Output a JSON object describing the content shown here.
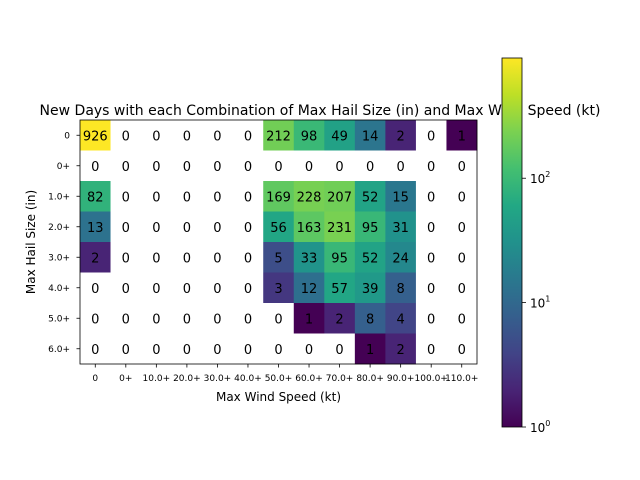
{
  "chart_data": {
    "type": "heatmap",
    "title": "New Days with each Combination of Max Hail Size (in) and Max Wind Speed (kt)",
    "xlabel": "Max Wind Speed (kt)",
    "ylabel": "Max Hail Size (in)",
    "x_categories": [
      "0",
      "0+",
      "10.0+",
      "20.0+",
      "30.0+",
      "40.0+",
      "50.0+",
      "60.0+",
      "70.0+",
      "80.0+",
      "90.0+",
      "100.0+",
      "110.0+"
    ],
    "y_categories": [
      "0",
      "0+",
      "1.0+",
      "2.0+",
      "3.0+",
      "4.0+",
      "5.0+",
      "6.0+"
    ],
    "values": [
      [
        926,
        0,
        0,
        0,
        0,
        0,
        212,
        98,
        49,
        14,
        2,
        0,
        1
      ],
      [
        0,
        0,
        0,
        0,
        0,
        0,
        0,
        0,
        0,
        0,
        0,
        0,
        0
      ],
      [
        82,
        0,
        0,
        0,
        0,
        0,
        169,
        228,
        207,
        52,
        15,
        0,
        0
      ],
      [
        13,
        0,
        0,
        0,
        0,
        0,
        56,
        163,
        231,
        95,
        31,
        0,
        0
      ],
      [
        2,
        0,
        0,
        0,
        0,
        0,
        5,
        33,
        95,
        52,
        24,
        0,
        0
      ],
      [
        0,
        0,
        0,
        0,
        0,
        0,
        3,
        12,
        57,
        39,
        8,
        0,
        0
      ],
      [
        0,
        0,
        0,
        0,
        0,
        0,
        0,
        1,
        2,
        8,
        4,
        0,
        0
      ],
      [
        0,
        0,
        0,
        0,
        0,
        0,
        0,
        0,
        0,
        1,
        2,
        0,
        0
      ]
    ],
    "color_scale": "log",
    "colormap": "viridis",
    "zero_color": "#ffffff",
    "colorbar": {
      "range": [
        1,
        926
      ],
      "ticks": [
        {
          "value": 1,
          "base": "10",
          "exp": "0"
        },
        {
          "value": 10,
          "base": "10",
          "exp": "1"
        },
        {
          "value": 100,
          "base": "10",
          "exp": "2"
        }
      ]
    }
  }
}
